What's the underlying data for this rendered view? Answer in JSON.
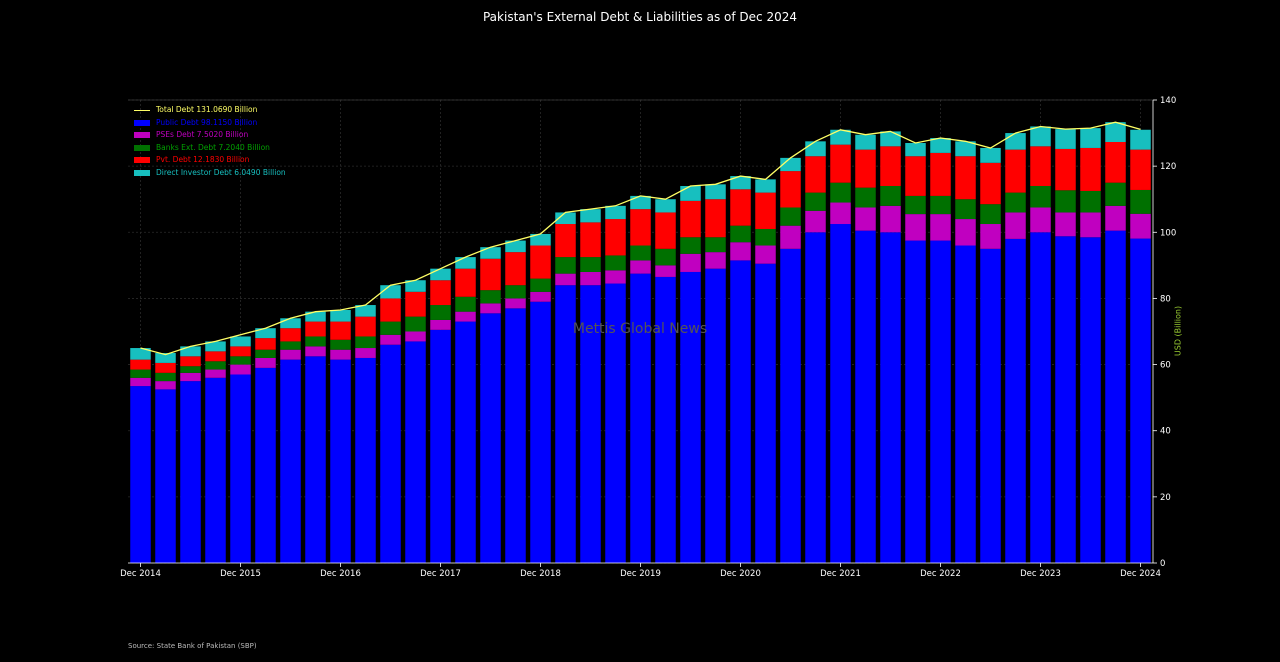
{
  "title": "Pakistan's External Debt & Liabilities as of Dec 2024",
  "source": "Source: State Bank of Pakistan (SBP)",
  "watermark": "Mettis Global News",
  "legend": {
    "total": "Total Debt 131.0690 Billion",
    "public": "Public Debt 98.1150 Billion",
    "pses": "PSEs Debt 7.5020 Billion",
    "banks": "Banks Ext. Debt 7.2040 Billion",
    "pvt": "Pvt. Debt 12.1830 Billion",
    "fdi": "Direct Investor Debt 6.0490 Billion"
  },
  "colors": {
    "public": "#0000ff",
    "pses": "#c000c0",
    "banks": "#007000",
    "pvt": "#ff0000",
    "fdi": "#17bfbf",
    "total": "#ffff66",
    "ylabel": "#9acd32"
  },
  "chart_data": {
    "type": "bar",
    "stacked": true,
    "title": "Pakistan's External Debt & Liabilities as of Dec 2024",
    "ylabel": "USD (Billion)",
    "ylim": [
      0,
      140
    ],
    "yticks": [
      0,
      20,
      40,
      60,
      80,
      100,
      120,
      140
    ],
    "xticks": [
      "Dec 2014",
      "Dec 2015",
      "Dec 2016",
      "Dec 2017",
      "Dec 2018",
      "Dec 2019",
      "Dec 2020",
      "Dec 2021",
      "Dec 2022",
      "Dec 2023",
      "Dec 2024"
    ],
    "categories": [
      "Dec 2014",
      "Mar 2015",
      "Jun 2015",
      "Sep 2015",
      "Dec 2015",
      "Mar 2016",
      "Jun 2016",
      "Sep 2016",
      "Dec 2016",
      "Mar 2017",
      "Jun 2017",
      "Sep 2017",
      "Dec 2017",
      "Mar 2018",
      "Jun 2018",
      "Sep 2018",
      "Dec 2018",
      "Mar 2019",
      "Jun 2019",
      "Sep 2019",
      "Dec 2019",
      "Mar 2020",
      "Jun 2020",
      "Sep 2020",
      "Dec 2020",
      "Mar 2021",
      "Jun 2021",
      "Sep 2021",
      "Dec 2021",
      "Mar 2022",
      "Jun 2022",
      "Sep 2022",
      "Dec 2022",
      "Mar 2023",
      "Jun 2023",
      "Sep 2023",
      "Dec 2023",
      "Mar 2024",
      "Jun 2024",
      "Sep 2024",
      "Dec 2024"
    ],
    "series": [
      {
        "name": "Public Debt",
        "values": [
          53.5,
          52.5,
          55,
          56,
          57,
          59,
          61.5,
          62.5,
          61.5,
          62,
          66,
          67,
          70.5,
          73,
          75.5,
          77,
          79,
          84,
          84,
          84.5,
          87.5,
          86.5,
          88,
          89,
          91.5,
          90.5,
          95,
          100,
          102.5,
          100.5,
          100,
          97.5,
          97.5,
          96,
          95,
          98,
          100,
          98.8,
          98.5,
          100.5,
          98.1
        ]
      },
      {
        "name": "PSEs Debt",
        "values": [
          2.5,
          2.5,
          2.5,
          2.5,
          3,
          3,
          3,
          3,
          3,
          3,
          3,
          3,
          3,
          3,
          3,
          3,
          3,
          3.5,
          4,
          4,
          4,
          3.5,
          5.5,
          5,
          5.5,
          5.5,
          7,
          6.5,
          6.5,
          7,
          8,
          8,
          8,
          8,
          7.5,
          8,
          7.5,
          7.2,
          7.5,
          7.5,
          7.5
        ]
      },
      {
        "name": "Banks Ext. Debt",
        "values": [
          2.5,
          2.5,
          2,
          2.5,
          2.5,
          2.5,
          2.5,
          3,
          3,
          3.5,
          4,
          4.5,
          4.5,
          4.5,
          4,
          4,
          4,
          5,
          4.5,
          4.5,
          4.5,
          5,
          5,
          4.5,
          5,
          5,
          5.5,
          5.5,
          6,
          6,
          6,
          5.5,
          5.5,
          6,
          6,
          6,
          6.5,
          6.7,
          6.5,
          7,
          7.2
        ]
      },
      {
        "name": "Pvt. Debt",
        "values": [
          3,
          3,
          3,
          3,
          3,
          3.5,
          4,
          4.5,
          5.5,
          6,
          7,
          7.5,
          7.5,
          8.5,
          9.5,
          10,
          10,
          10,
          10.5,
          11,
          11,
          11,
          11,
          11.5,
          11,
          11,
          11,
          11,
          11.5,
          11.5,
          12,
          12,
          13,
          13,
          12.5,
          13,
          12,
          12.5,
          13,
          12.3,
          12.2
        ]
      },
      {
        "name": "Direct Investor Debt",
        "values": [
          3.5,
          3,
          3,
          3,
          3,
          3,
          3,
          3,
          3.5,
          3.5,
          4,
          3.5,
          3.5,
          3.5,
          3.5,
          3.5,
          3.5,
          3.5,
          4,
          4,
          4,
          4,
          4.5,
          4.5,
          4,
          4,
          4,
          4.5,
          4.5,
          4.5,
          4.5,
          4,
          4.5,
          4.5,
          4.5,
          5,
          6,
          6,
          6,
          6,
          6
        ]
      }
    ],
    "total_line": {
      "name": "Total Debt",
      "values": [
        65,
        63,
        65.5,
        67,
        69,
        71,
        74,
        76,
        76.5,
        78,
        84,
        85.5,
        89,
        92.5,
        95.5,
        97.5,
        99.5,
        106,
        107,
        108,
        111,
        110,
        114,
        114.5,
        117,
        116,
        122.5,
        127.5,
        131,
        129.5,
        130.5,
        127,
        128.5,
        127.5,
        125.5,
        130,
        132,
        131.2,
        131.5,
        133.3,
        131.1
      ]
    }
  }
}
